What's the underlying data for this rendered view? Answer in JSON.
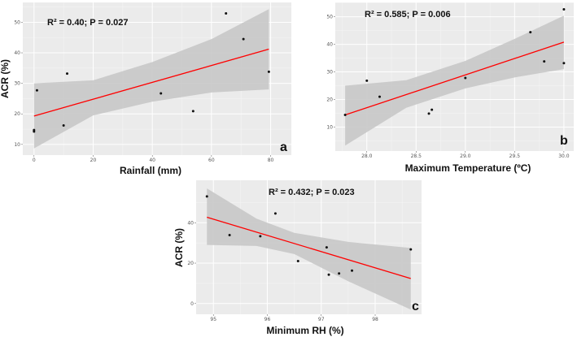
{
  "chart_data": [
    {
      "type": "scatter",
      "panel": "a",
      "annotation": "R² = 0.40; P = 0.027",
      "xlabel": "Rainfall (mm)",
      "ylabel": "ACR (%)",
      "xlim": [
        -3.8,
        87
      ],
      "ylim": [
        6.5,
        56.5
      ],
      "xticks": [
        0,
        20,
        40,
        60,
        80
      ],
      "yticks": [
        10,
        20,
        30,
        40,
        50
      ],
      "points": [
        [
          0,
          14.2
        ],
        [
          0,
          14.7
        ],
        [
          1,
          27.7
        ],
        [
          10,
          16.2
        ],
        [
          11.2,
          33.2
        ],
        [
          42.9,
          26.7
        ],
        [
          53.8,
          20.9
        ],
        [
          64.9,
          52.9
        ],
        [
          70.8,
          44.5
        ],
        [
          79.4,
          33.8
        ]
      ],
      "fit_line": [
        [
          0,
          19.3
        ],
        [
          79.4,
          41.2
        ]
      ],
      "ci_band": [
        [
          0,
          8.7,
          30
        ],
        [
          20,
          19.5,
          31
        ],
        [
          40,
          24,
          37
        ],
        [
          60,
          27,
          44.5
        ],
        [
          79.4,
          28,
          54.3
        ]
      ],
      "colors": {
        "line": "#ff0000",
        "band": "#c8c8c8",
        "panel": "#ebebeb",
        "point": "#111111"
      }
    },
    {
      "type": "scatter",
      "panel": "b",
      "annotation": "R² = 0.585; P = 0.006",
      "xlabel": "Maximum Temperature (ºC)",
      "ylabel": "",
      "xlim": [
        27.68,
        30.1
      ],
      "ylim": [
        1.3,
        55.2
      ],
      "xticks": [
        28.0,
        28.5,
        29.0,
        29.5,
        30.0
      ],
      "yticks": [
        10,
        20,
        30,
        40,
        50
      ],
      "points": [
        [
          27.78,
          14.4
        ],
        [
          28.0,
          26.8
        ],
        [
          28.13,
          21.0
        ],
        [
          28.63,
          14.9
        ],
        [
          28.66,
          16.3
        ],
        [
          29.0,
          27.8
        ],
        [
          29.66,
          44.4
        ],
        [
          29.8,
          33.8
        ],
        [
          30.0,
          52.7
        ],
        [
          30.0,
          33.2
        ]
      ],
      "fit_line": [
        [
          27.78,
          14.4
        ],
        [
          30.0,
          40.8
        ]
      ],
      "ci_band": [
        [
          27.78,
          3.3,
          25
        ],
        [
          28.4,
          17,
          27
        ],
        [
          29.0,
          24,
          34
        ],
        [
          29.5,
          28,
          42
        ],
        [
          30.0,
          31,
          50.4
        ]
      ],
      "colors": {
        "line": "#ff0000",
        "band": "#c8c8c8",
        "panel": "#ebebeb",
        "point": "#111111"
      }
    },
    {
      "type": "scatter",
      "panel": "c",
      "annotation": "R² = 0.432; P = 0.023",
      "xlabel": "Minimum RH (%)",
      "ylabel": "ACR (%)",
      "xlim": [
        94.68,
        98.86
      ],
      "ylim": [
        -5.3,
        61
      ],
      "xticks": [
        95,
        96,
        97,
        98
      ],
      "yticks": [
        0,
        20,
        40
      ],
      "points": [
        [
          94.88,
          53.0
        ],
        [
          95.3,
          33.9
        ],
        [
          95.87,
          33.3
        ],
        [
          96.15,
          44.6
        ],
        [
          96.57,
          21.0
        ],
        [
          97.1,
          27.8
        ],
        [
          97.14,
          14.3
        ],
        [
          97.33,
          14.9
        ],
        [
          97.57,
          16.3
        ],
        [
          98.66,
          26.8
        ]
      ],
      "fit_line": [
        [
          94.88,
          42.7
        ],
        [
          98.66,
          12.4
        ]
      ],
      "ci_band": [
        [
          94.88,
          29,
          57
        ],
        [
          95.8,
          28.5,
          42
        ],
        [
          96.5,
          24.5,
          35
        ],
        [
          97.5,
          11,
          30.5
        ],
        [
          98.66,
          -3,
          27.5
        ]
      ],
      "colors": {
        "line": "#ff0000",
        "band": "#c8c8c8",
        "panel": "#ebebeb",
        "point": "#111111"
      }
    }
  ]
}
